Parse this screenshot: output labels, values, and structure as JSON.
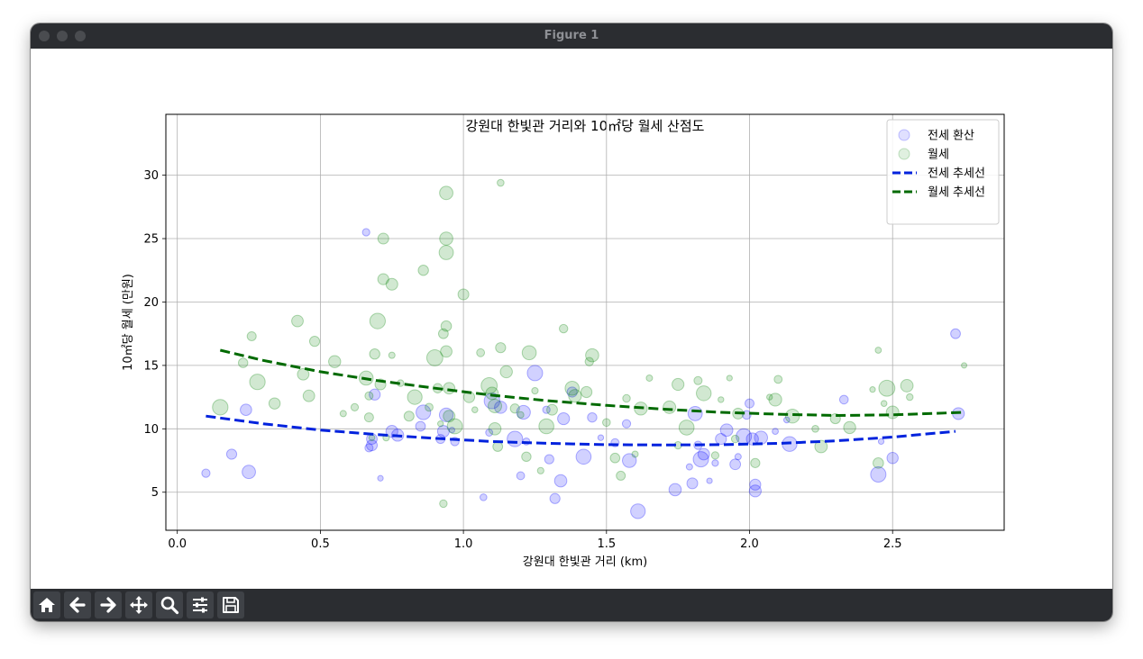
{
  "window": {
    "title": "Figure 1"
  },
  "toolbar": {
    "buttons": [
      {
        "icon": "home-icon"
      },
      {
        "icon": "back-arrow-icon"
      },
      {
        "icon": "forward-arrow-icon"
      },
      {
        "icon": "pan-icon"
      },
      {
        "icon": "zoom-icon"
      },
      {
        "icon": "configure-subplots-icon"
      },
      {
        "icon": "save-icon"
      }
    ]
  },
  "chart_data": {
    "type": "scatter",
    "title": "강원대 한빛관 거리와 10㎡당 월세 산점도",
    "xlabel": "강원대 한빛관 거리 (km)",
    "ylabel": "10㎡당 월세 (만원)",
    "xlim": [
      -0.04,
      2.89
    ],
    "ylim": [
      2.0,
      34.8
    ],
    "xticks": [
      "0.0",
      "0.5",
      "1.0",
      "1.5",
      "2.0",
      "2.5"
    ],
    "yticks": [
      "5",
      "10",
      "15",
      "20",
      "25",
      "30"
    ],
    "grid": true,
    "legend_position": "upper right",
    "legend": [
      "전세 환산",
      "월세",
      "전세 추세선",
      "월세 추세선"
    ],
    "colors": {
      "jeonse": "#0000ff",
      "wolse": "#008000",
      "jeonse_trend": "#0022dd",
      "wolse_trend": "#006a00"
    },
    "series": [
      {
        "name": "전세 환산",
        "type": "scatter",
        "color": "#0000ff",
        "points": [
          [
            0.1,
            6.5
          ],
          [
            0.19,
            8.0
          ],
          [
            0.24,
            11.5
          ],
          [
            0.25,
            6.6
          ],
          [
            0.66,
            25.5
          ],
          [
            0.67,
            8.5
          ],
          [
            0.68,
            8.7
          ],
          [
            0.68,
            9.2
          ],
          [
            0.69,
            12.7
          ],
          [
            0.71,
            6.1
          ],
          [
            0.75,
            9.8
          ],
          [
            0.77,
            9.5
          ],
          [
            0.85,
            10.2
          ],
          [
            0.86,
            11.3
          ],
          [
            0.92,
            9.2
          ],
          [
            0.93,
            9.8
          ],
          [
            0.94,
            11.1
          ],
          [
            0.96,
            9.9
          ],
          [
            0.97,
            9.0
          ],
          [
            1.07,
            4.6
          ],
          [
            1.09,
            9.7
          ],
          [
            1.1,
            12.2
          ],
          [
            1.13,
            11.7
          ],
          [
            1.18,
            9.2
          ],
          [
            1.2,
            6.3
          ],
          [
            1.21,
            11.3
          ],
          [
            1.22,
            9.0
          ],
          [
            1.25,
            14.4
          ],
          [
            1.29,
            11.5
          ],
          [
            1.3,
            7.6
          ],
          [
            1.32,
            4.5
          ],
          [
            1.34,
            5.9
          ],
          [
            1.35,
            10.8
          ],
          [
            1.38,
            12.9
          ],
          [
            1.42,
            7.8
          ],
          [
            1.45,
            10.9
          ],
          [
            1.48,
            9.3
          ],
          [
            1.53,
            8.9
          ],
          [
            1.57,
            10.4
          ],
          [
            1.58,
            7.5
          ],
          [
            1.61,
            3.5
          ],
          [
            1.74,
            5.2
          ],
          [
            1.79,
            7.0
          ],
          [
            1.8,
            5.7
          ],
          [
            1.81,
            11.2
          ],
          [
            1.82,
            8.7
          ],
          [
            1.83,
            7.6
          ],
          [
            1.84,
            8.0
          ],
          [
            1.86,
            5.9
          ],
          [
            1.88,
            7.3
          ],
          [
            1.9,
            9.2
          ],
          [
            1.92,
            9.9
          ],
          [
            1.95,
            7.2
          ],
          [
            1.96,
            7.8
          ],
          [
            1.98,
            9.4
          ],
          [
            1.99,
            11.1
          ],
          [
            2.0,
            12.0
          ],
          [
            2.01,
            9.2
          ],
          [
            2.02,
            5.1
          ],
          [
            2.02,
            5.6
          ],
          [
            2.04,
            9.3
          ],
          [
            2.09,
            9.8
          ],
          [
            2.13,
            10.7
          ],
          [
            2.14,
            8.8
          ],
          [
            2.33,
            12.3
          ],
          [
            2.45,
            6.4
          ],
          [
            2.46,
            9.0
          ],
          [
            2.5,
            7.7
          ],
          [
            2.72,
            17.5
          ],
          [
            2.73,
            11.2
          ]
        ]
      },
      {
        "name": "월세",
        "type": "scatter",
        "color": "#008000",
        "points": [
          [
            0.15,
            11.7
          ],
          [
            0.23,
            15.2
          ],
          [
            0.26,
            17.3
          ],
          [
            0.28,
            13.7
          ],
          [
            0.34,
            12.0
          ],
          [
            0.42,
            18.5
          ],
          [
            0.44,
            14.3
          ],
          [
            0.46,
            12.6
          ],
          [
            0.48,
            16.9
          ],
          [
            0.55,
            15.3
          ],
          [
            0.58,
            11.2
          ],
          [
            0.62,
            11.7
          ],
          [
            0.66,
            14.0
          ],
          [
            0.67,
            12.6
          ],
          [
            0.67,
            10.9
          ],
          [
            0.68,
            9.3
          ],
          [
            0.69,
            15.9
          ],
          [
            0.7,
            18.5
          ],
          [
            0.71,
            13.5
          ],
          [
            0.72,
            21.8
          ],
          [
            0.72,
            25.0
          ],
          [
            0.73,
            9.3
          ],
          [
            0.75,
            15.8
          ],
          [
            0.75,
            21.4
          ],
          [
            0.78,
            13.6
          ],
          [
            0.81,
            11.0
          ],
          [
            0.83,
            12.5
          ],
          [
            0.86,
            22.5
          ],
          [
            0.88,
            11.7
          ],
          [
            0.9,
            15.6
          ],
          [
            0.91,
            13.2
          ],
          [
            0.92,
            10.4
          ],
          [
            0.93,
            17.5
          ],
          [
            0.93,
            4.1
          ],
          [
            0.94,
            28.6
          ],
          [
            0.94,
            25.0
          ],
          [
            0.94,
            23.9
          ],
          [
            0.94,
            18.1
          ],
          [
            0.94,
            16.1
          ],
          [
            0.95,
            13.2
          ],
          [
            0.95,
            11.0
          ],
          [
            0.97,
            10.2
          ],
          [
            1.0,
            20.6
          ],
          [
            1.02,
            12.5
          ],
          [
            1.04,
            11.5
          ],
          [
            1.06,
            16.0
          ],
          [
            1.09,
            13.4
          ],
          [
            1.1,
            12.8
          ],
          [
            1.11,
            11.8
          ],
          [
            1.11,
            10.0
          ],
          [
            1.12,
            8.6
          ],
          [
            1.13,
            16.4
          ],
          [
            1.13,
            29.4
          ],
          [
            1.15,
            14.5
          ],
          [
            1.18,
            11.6
          ],
          [
            1.2,
            11.1
          ],
          [
            1.22,
            7.8
          ],
          [
            1.23,
            16.0
          ],
          [
            1.25,
            13.0
          ],
          [
            1.27,
            6.7
          ],
          [
            1.29,
            10.2
          ],
          [
            1.31,
            11.5
          ],
          [
            1.35,
            17.9
          ],
          [
            1.38,
            13.2
          ],
          [
            1.39,
            12.6
          ],
          [
            1.43,
            12.9
          ],
          [
            1.44,
            15.3
          ],
          [
            1.45,
            15.8
          ],
          [
            1.5,
            10.5
          ],
          [
            1.53,
            7.7
          ],
          [
            1.55,
            6.3
          ],
          [
            1.57,
            12.4
          ],
          [
            1.6,
            8.0
          ],
          [
            1.62,
            11.6
          ],
          [
            1.65,
            14.0
          ],
          [
            1.72,
            11.7
          ],
          [
            1.75,
            8.7
          ],
          [
            1.75,
            13.5
          ],
          [
            1.78,
            10.1
          ],
          [
            1.82,
            13.8
          ],
          [
            1.84,
            12.8
          ],
          [
            1.88,
            7.9
          ],
          [
            1.9,
            12.3
          ],
          [
            1.93,
            14.0
          ],
          [
            1.95,
            9.2
          ],
          [
            1.96,
            11.2
          ],
          [
            2.02,
            7.3
          ],
          [
            2.07,
            12.5
          ],
          [
            2.09,
            12.3
          ],
          [
            2.1,
            13.9
          ],
          [
            2.15,
            11.0
          ],
          [
            2.23,
            10.0
          ],
          [
            2.25,
            8.6
          ],
          [
            2.3,
            10.8
          ],
          [
            2.35,
            10.1
          ],
          [
            2.43,
            13.1
          ],
          [
            2.45,
            7.3
          ],
          [
            2.45,
            16.2
          ],
          [
            2.47,
            12.0
          ],
          [
            2.48,
            13.2
          ],
          [
            2.5,
            11.3
          ],
          [
            2.55,
            13.4
          ],
          [
            2.56,
            12.5
          ],
          [
            2.75,
            15.0
          ]
        ]
      },
      {
        "name": "전세 추세선",
        "type": "line",
        "style": "dashed",
        "color": "#0022dd",
        "points": [
          [
            0.1,
            11.0
          ],
          [
            0.3,
            10.4
          ],
          [
            0.5,
            9.9
          ],
          [
            0.7,
            9.55
          ],
          [
            0.9,
            9.25
          ],
          [
            1.1,
            9.0
          ],
          [
            1.3,
            8.85
          ],
          [
            1.5,
            8.75
          ],
          [
            1.7,
            8.72
          ],
          [
            1.9,
            8.75
          ],
          [
            2.1,
            8.85
          ],
          [
            2.3,
            9.05
          ],
          [
            2.5,
            9.35
          ],
          [
            2.72,
            9.8
          ]
        ]
      },
      {
        "name": "월세 추세선",
        "type": "line",
        "style": "dashed",
        "color": "#006a00",
        "points": [
          [
            0.15,
            16.2
          ],
          [
            0.3,
            15.4
          ],
          [
            0.5,
            14.5
          ],
          [
            0.7,
            13.8
          ],
          [
            0.9,
            13.2
          ],
          [
            1.1,
            12.65
          ],
          [
            1.3,
            12.2
          ],
          [
            1.5,
            11.85
          ],
          [
            1.7,
            11.55
          ],
          [
            1.9,
            11.3
          ],
          [
            2.1,
            11.15
          ],
          [
            2.3,
            11.05
          ],
          [
            2.5,
            11.1
          ],
          [
            2.75,
            11.3
          ]
        ]
      }
    ]
  }
}
